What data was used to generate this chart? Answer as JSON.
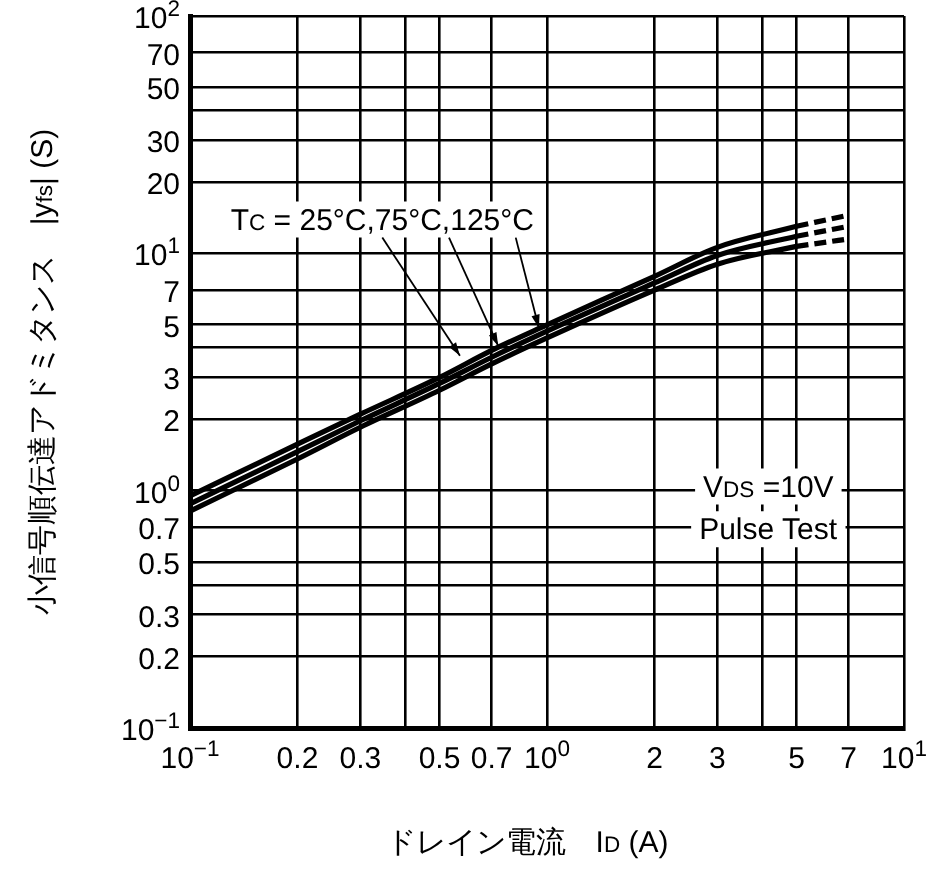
{
  "chart_data": {
    "type": "line",
    "xlabel": "ドレイン電流　I$_{D}$ (A)",
    "ylabel": "小信号順伝達アドミタンス　|y$_{fs}$| (S)",
    "log": "xy",
    "grid": true,
    "marker": "none",
    "xlim": [
      0.1,
      10
    ],
    "ylim": [
      0.1,
      100
    ],
    "xticks": [
      {
        "value": 0.1,
        "label": "10$^{−1}$"
      },
      0.2,
      0.3,
      {
        "value": 0.4,
        "label": null
      },
      0.5,
      0.7,
      {
        "value": 1,
        "label": "10$^{0}$"
      },
      2,
      3,
      {
        "value": 4,
        "label": null
      },
      5,
      7,
      {
        "value": 10,
        "label": "10$^{1}$"
      }
    ],
    "yticks": [
      {
        "value": 0.1,
        "label": "10$^{−1}$"
      },
      0.2,
      0.3,
      {
        "value": 0.4,
        "label": null
      },
      0.5,
      0.7,
      {
        "value": 1,
        "label": "10$^{0}$"
      },
      2,
      3,
      {
        "value": 4,
        "label": null
      },
      5,
      7,
      {
        "value": 10,
        "label": "10$^{1}$"
      },
      20,
      30,
      {
        "value": 40,
        "label": null
      },
      50,
      70,
      {
        "value": 100,
        "label": "10$^{2}$"
      }
    ],
    "series": [
      {
        "color": "#000000",
        "line_style": "solid",
        "x": [
          0.1,
          0.2,
          0.3,
          0.5,
          0.7,
          1,
          2,
          3,
          5
        ],
        "values": [
          0.95,
          1.57,
          2.1,
          3.0,
          3.9,
          5.0,
          8.0,
          10.6,
          13
        ]
      },
      {
        "color": "#000000",
        "line_style": "solid",
        "x": [
          0.1,
          0.2,
          0.3,
          0.5,
          0.7,
          1,
          2,
          3,
          5
        ],
        "values": [
          0.88,
          1.46,
          1.97,
          2.83,
          3.65,
          4.7,
          7.5,
          9.8,
          11.8
        ]
      },
      {
        "color": "#000000",
        "line_style": "solid",
        "x": [
          0.1,
          0.2,
          0.3,
          0.5,
          0.7,
          1,
          2,
          3,
          5
        ],
        "values": [
          0.82,
          1.36,
          1.85,
          2.65,
          3.42,
          4.4,
          7.0,
          9.0,
          10.7
        ]
      },
      {
        "color": "#000000",
        "line_style": "dashed",
        "x": [
          5,
          7
        ],
        "values": [
          13,
          14.5
        ]
      },
      {
        "color": "#000000",
        "line_style": "dashed",
        "x": [
          5,
          7
        ],
        "values": [
          11.8,
          13
        ]
      },
      {
        "color": "#000000",
        "line_style": "dashed",
        "x": [
          5,
          7
        ],
        "values": [
          10.7,
          11.5
        ]
      }
    ],
    "annotations": [
      {
        "text": "T$_{C}$ = 25°C,75°C,125°C",
        "x": 0.73,
        "y": 4.07
      },
      "V$_{DS}$ =10V",
      "Pulse Test"
    ]
  }
}
